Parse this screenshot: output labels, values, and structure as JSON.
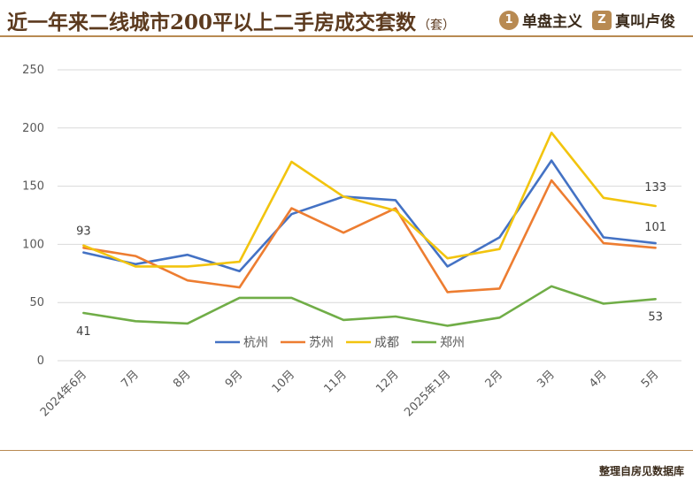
{
  "header": {
    "title": "近一年来二线城市200平以上二手房成交套数",
    "title_unit": "（套）",
    "brand1": {
      "icon": "1",
      "name": "单盘主义"
    },
    "brand2": {
      "icon": "Z",
      "name": "真叫卢俊"
    }
  },
  "footer": {
    "source": "整理自房见数据库"
  },
  "colors": {
    "accent": "#b88a52",
    "grid": "#d9d9d9",
    "杭州": "#4472c4",
    "苏州": "#ed7d31",
    "成都": "#f2c40e",
    "郑州": "#70ad47"
  },
  "chart_data": {
    "type": "line",
    "title": "近一年来二线城市200平以上二手房成交套数（套）",
    "xlabel": "",
    "ylabel": "",
    "ylim": [
      0,
      250
    ],
    "yticks": [
      0,
      50,
      100,
      150,
      200,
      250
    ],
    "grid": true,
    "legend_position": "bottom-center-inside",
    "categories": [
      "2024年6月",
      "7月",
      "8月",
      "9月",
      "10月",
      "11月",
      "12月",
      "2025年1月",
      "2月",
      "3月",
      "4月",
      "5月"
    ],
    "series": [
      {
        "name": "杭州",
        "values": [
          93,
          83,
          91,
          77,
          126,
          141,
          138,
          81,
          106,
          172,
          106,
          101
        ]
      },
      {
        "name": "苏州",
        "values": [
          97,
          90,
          69,
          63,
          131,
          110,
          131,
          59,
          62,
          155,
          101,
          97
        ]
      },
      {
        "name": "成都",
        "values": [
          99,
          81,
          81,
          85,
          171,
          141,
          129,
          88,
          96,
          196,
          140,
          133
        ]
      },
      {
        "name": "郑州",
        "values": [
          41,
          34,
          32,
          54,
          54,
          35,
          38,
          30,
          37,
          64,
          49,
          53
        ]
      }
    ],
    "data_labels": [
      {
        "series": "杭州",
        "index": 0,
        "text": "93"
      },
      {
        "series": "郑州",
        "index": 0,
        "text": "41"
      },
      {
        "series": "成都",
        "index": 11,
        "text": "133"
      },
      {
        "series": "杭州",
        "index": 11,
        "text": "101"
      },
      {
        "series": "郑州",
        "index": 11,
        "text": "53"
      }
    ]
  }
}
